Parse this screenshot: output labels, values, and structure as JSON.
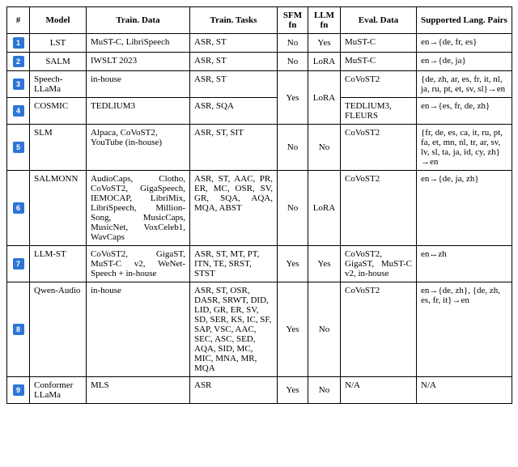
{
  "table": {
    "headers": {
      "idx": "#",
      "model": "Model",
      "train_data": "Train. Data",
      "train_tasks": "Train. Tasks",
      "sfm": "SFM fn",
      "llm": "LLM fn",
      "eval_data": "Eval. Data",
      "lang_pairs": "Supported Lang. Pairs"
    },
    "rows": [
      {
        "idx": "1",
        "model": "LST",
        "train_data": "MuST-C, LibriSpeech",
        "train_tasks": "ASR, ST",
        "sfm": "No",
        "llm": "Yes",
        "eval_data": "MuST-C",
        "lang_pairs": "en→{de, fr, es}"
      },
      {
        "idx": "2",
        "model": "SALM",
        "train_data": "IWSLT 2023",
        "train_tasks": "ASR, ST",
        "sfm": "No",
        "llm": "LoRA",
        "eval_data": "MuST-C",
        "lang_pairs": "en→{de, ja}"
      },
      {
        "idx": "3",
        "model": "Speech-LLaMa",
        "train_data": "in-house",
        "train_tasks": "ASR, ST",
        "sfm_group": "Yes",
        "llm_group": "LoRA",
        "eval_data": "CoVoST2",
        "lang_pairs": "{de, zh, ar, es, fr, it, nl, ja, ru, pt, et, sv, sl}→en"
      },
      {
        "idx": "4",
        "model": "COSMIC",
        "train_data": "TEDLIUM3",
        "train_tasks": "ASR, SQA",
        "eval_data": "TEDLIUM3, FLEURS",
        "lang_pairs": "en→{es, fr, de, zh}"
      },
      {
        "idx": "5",
        "model": "SLM",
        "train_data": "Alpaca, CoVoST2, YouTube (in-house)",
        "train_tasks": "ASR, ST, SIT",
        "sfm": "No",
        "llm": "No",
        "eval_data": "CoVoST2",
        "lang_pairs": "{fr, de, es, ca, it, ru, pt, fa, et, mn, nl, tr, ar, sv, lv, sl, ta, ja, id, cy, zh}→en"
      },
      {
        "idx": "6",
        "model": "SALMONN",
        "train_data": "AudioCaps, Clotho, CoVoST2, GigaSpeech, IEMOCAP, LibriMix, LibriSpeech, Million-Song, MusicCaps, MusicNet, VoxCeleb1, WavCaps",
        "train_tasks": "ASR, ST, AAC, PR, ER, MC, OSR, SV, GR, SQA, AQA, MQA, ABST",
        "sfm": "No",
        "llm": "LoRA",
        "eval_data": "CoVoST2",
        "lang_pairs": "en→{de, ja, zh}"
      },
      {
        "idx": "7",
        "model": "LLM-ST",
        "train_data": "CoVoST2, GigaST, MuST-C v2, WeNet-Speech + in-house",
        "train_tasks": "ASR, ST, MT, PT, ITN, TE, SRST, STST",
        "sfm": "Yes",
        "llm": "Yes",
        "eval_data": "CoVoST2, GigaST, MuST-C v2, in-house",
        "lang_pairs": "en↔zh"
      },
      {
        "idx": "8",
        "model": "Qwen-Audio",
        "train_data": "in-house",
        "train_tasks": "ASR, ST, OSR, DASR, SRWT, DID, LID, GR, ER, SV, SD, SER, KS, IC, SF, SAP, VSC, AAC, SEC, ASC, SED, AQA, SID, MC, MIC, MNA, MR, MQA",
        "sfm": "Yes",
        "llm": "No",
        "eval_data": "CoVoST2",
        "lang_pairs": "en→{de, zh}, {de, zh, es, fr, it}→en"
      },
      {
        "idx": "9",
        "model": "Conformer LLaMa",
        "train_data": "MLS",
        "train_tasks": "ASR",
        "sfm": "Yes",
        "llm": "No",
        "eval_data": "N/A",
        "lang_pairs": "N/A"
      }
    ]
  },
  "style": {
    "background_color": "#ffffff",
    "border_color": "#000000",
    "font_family": "Times New Roman",
    "font_size_pt": 8,
    "badge_bg": "#2e75d6",
    "badge_fg": "#ffffff"
  }
}
